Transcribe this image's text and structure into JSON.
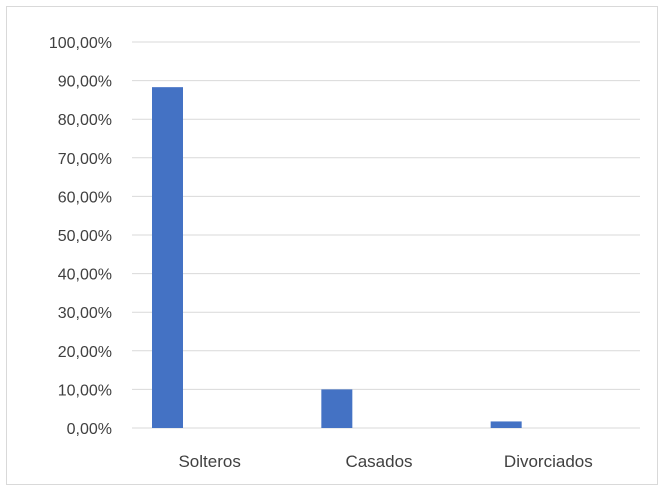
{
  "chart_data": {
    "type": "bar",
    "title": "",
    "xlabel": "",
    "ylabel": "",
    "categories": [
      "Solteros",
      "Casados",
      "Divorciados"
    ],
    "values": [
      88.3,
      10.0,
      1.7
    ],
    "ylim": [
      0,
      100
    ],
    "y_ticks": [
      0,
      10,
      20,
      30,
      40,
      50,
      60,
      70,
      80,
      90,
      100
    ],
    "y_tick_labels": [
      "0,00%",
      "10,00%",
      "20,00%",
      "30,00%",
      "40,00%",
      "50,00%",
      "60,00%",
      "70,00%",
      "80,00%",
      "90,00%",
      "100,00%"
    ],
    "grid": true,
    "legend": "none",
    "bar_color": "#4472C4",
    "gridline_color": "#d9d9d9",
    "text_color": "#404040"
  }
}
